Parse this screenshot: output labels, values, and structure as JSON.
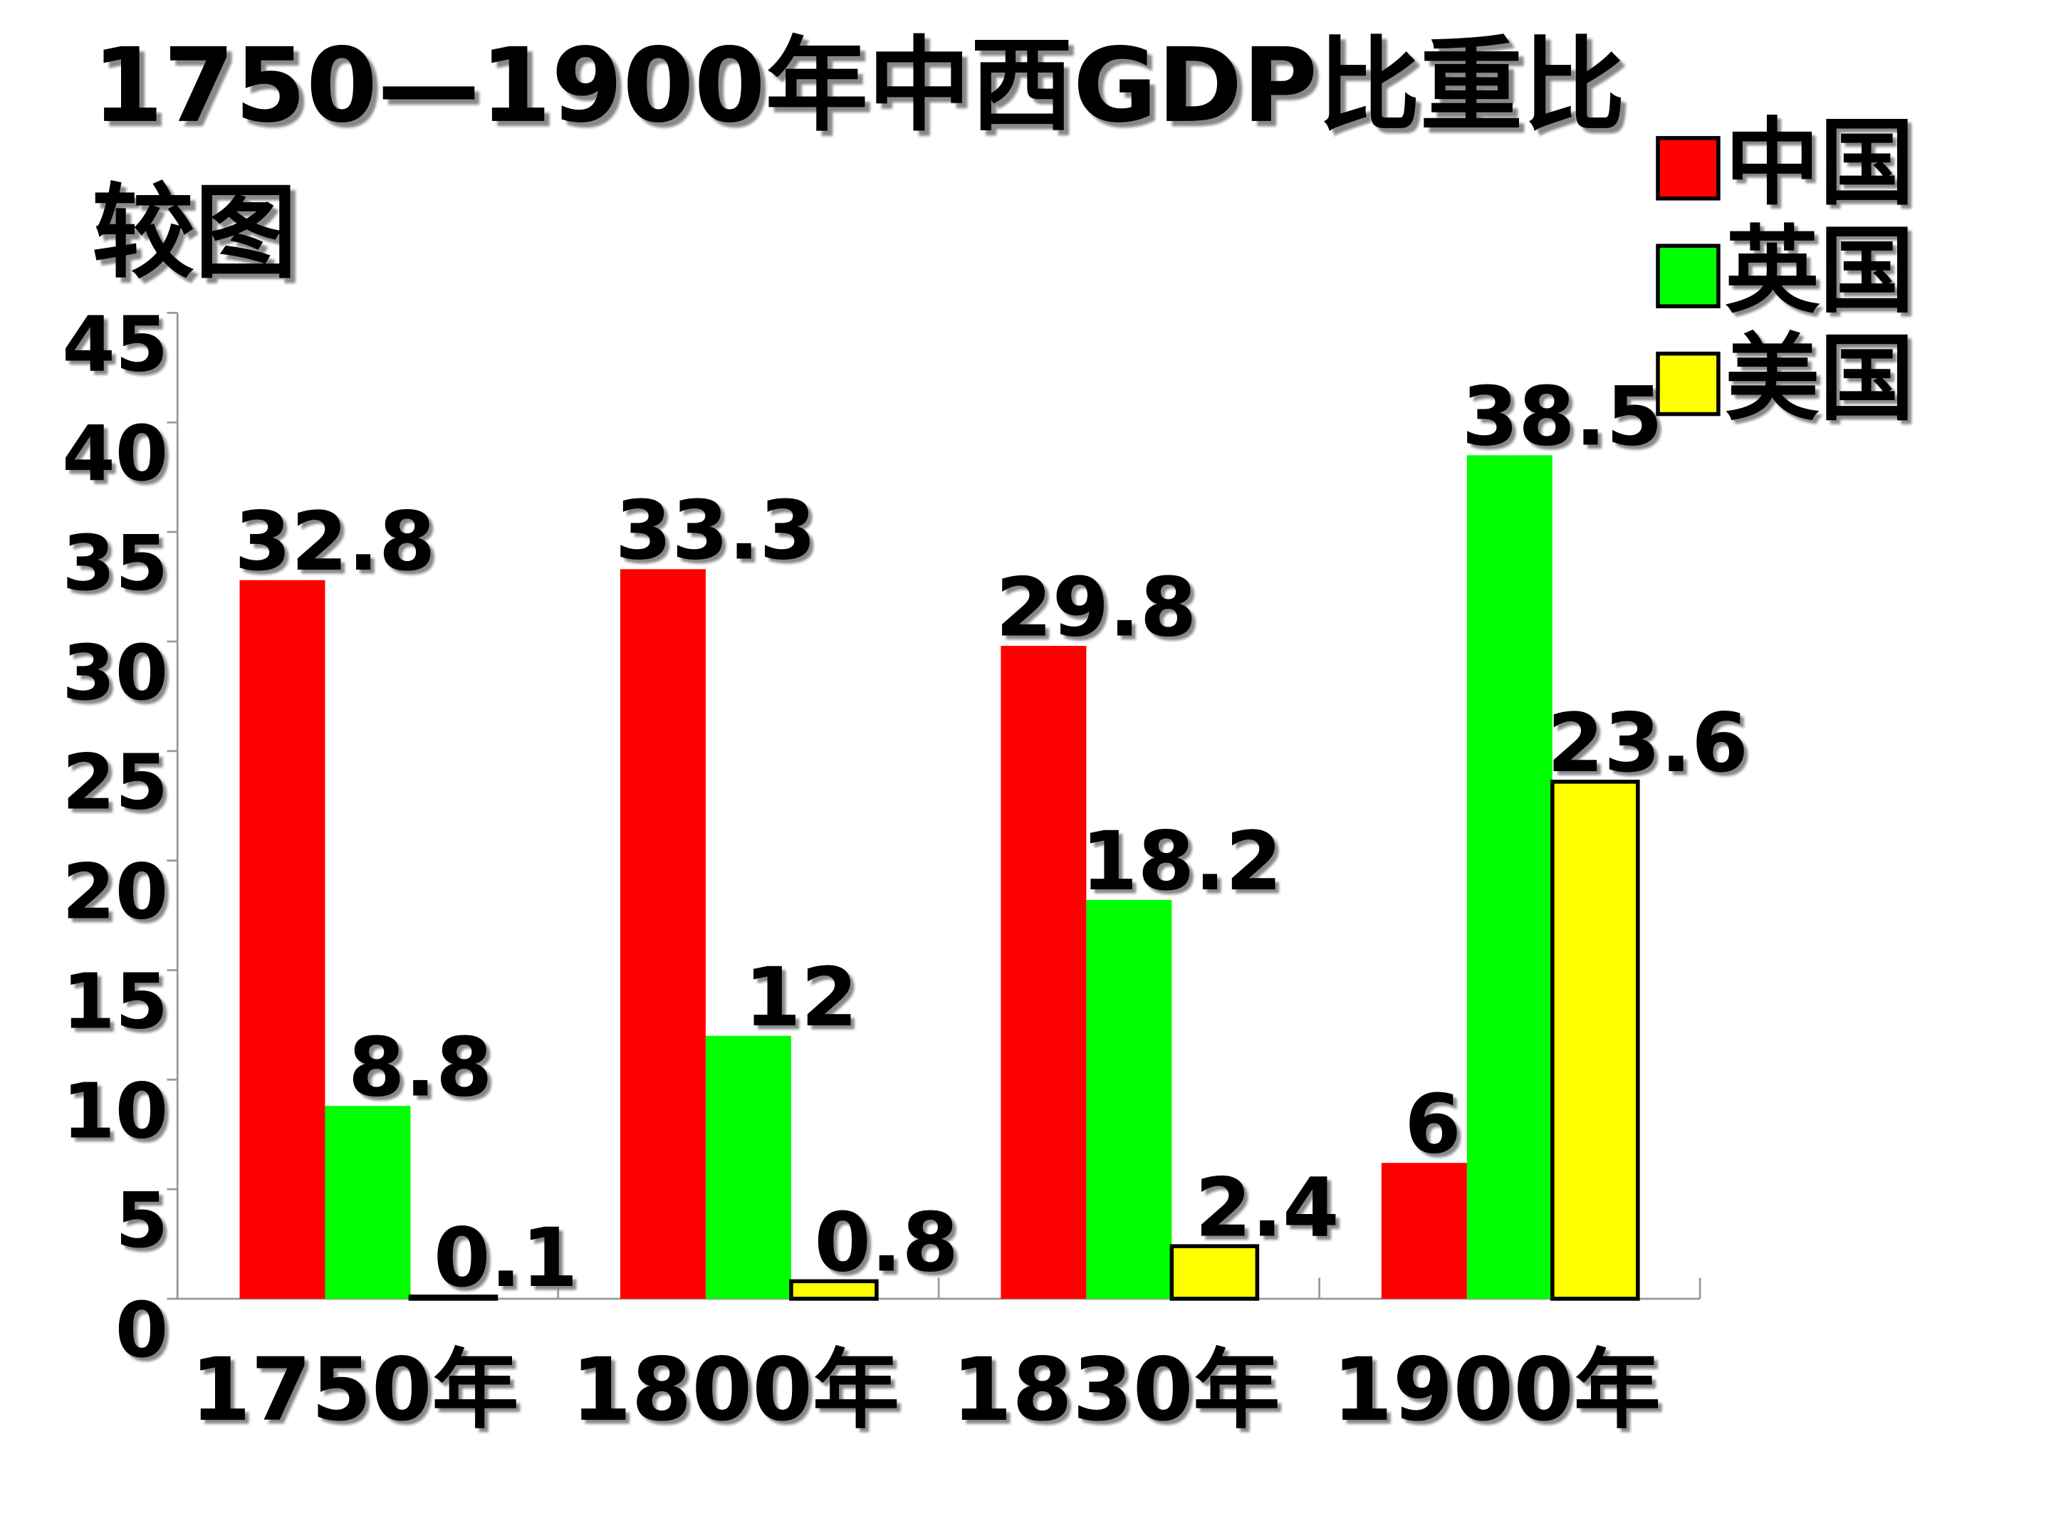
{
  "chart_data": {
    "type": "bar",
    "title": "1750—1900年中西GDP比重比较图",
    "categories": [
      "1750年",
      "1800年",
      "1830年",
      "1900年"
    ],
    "series": [
      {
        "name": "中国",
        "color": "#ff0000",
        "values": [
          32.8,
          33.3,
          29.8,
          6.2
        ]
      },
      {
        "name": "英国",
        "color": "#00ff00",
        "values": [
          8.8,
          12,
          18.2,
          38.5
        ]
      },
      {
        "name": "美国",
        "color": "#ffff00",
        "values": [
          0.1,
          0.8,
          2.4,
          23.6
        ]
      }
    ],
    "ylim": [
      0,
      45
    ],
    "yticks": [
      0,
      5,
      10,
      15,
      20,
      25,
      30,
      35,
      40,
      45
    ],
    "legend": "top-right"
  }
}
